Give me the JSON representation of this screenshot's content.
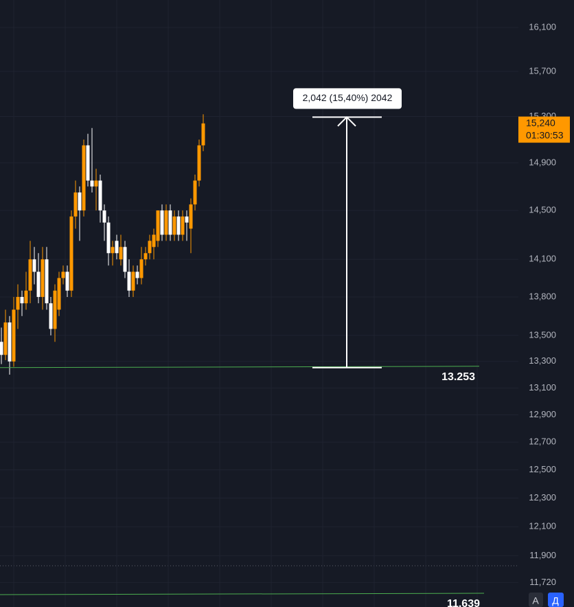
{
  "chart_data": {
    "type": "candlestick",
    "log": true,
    "ylim": [
      11557,
      16355
    ],
    "yticks": [
      {
        "value": 16100,
        "label": "16,100"
      },
      {
        "value": 15700,
        "label": "15,700"
      },
      {
        "value": 15300,
        "label": "15,300"
      },
      {
        "value": 14900,
        "label": "14,900"
      },
      {
        "value": 14500,
        "label": "14,500"
      },
      {
        "value": 14100,
        "label": "14,100"
      },
      {
        "value": 13800,
        "label": "13,800"
      },
      {
        "value": 13500,
        "label": "13,500"
      },
      {
        "value": 13300,
        "label": "13,300"
      },
      {
        "value": 13100,
        "label": "13,100"
      },
      {
        "value": 12900,
        "label": "12,900"
      },
      {
        "value": 12700,
        "label": "12,700"
      },
      {
        "value": 12500,
        "label": "12,500"
      },
      {
        "value": 12300,
        "label": "12,300"
      },
      {
        "value": 12100,
        "label": "12,100"
      },
      {
        "value": 11900,
        "label": "11,900"
      },
      {
        "value": 11720,
        "label": "11,720"
      }
    ],
    "grid": true,
    "up_color": "#ff9800",
    "down_color": "#ffffff",
    "series": {
      "open": [
        13450,
        13350,
        13600,
        13300,
        13700,
        13800,
        13750,
        13850,
        14100,
        14000,
        13800,
        14100,
        13750,
        13550,
        13700,
        13950,
        14000,
        13850,
        14450,
        14650,
        14500,
        15050,
        14750,
        14700,
        14750,
        14500,
        14400,
        14150,
        14250,
        14100,
        14200,
        14000,
        13850,
        14000,
        13950,
        14100,
        14150,
        14200,
        14250,
        14500,
        14300,
        14500,
        14300,
        14450,
        14300,
        14450,
        14350,
        14550,
        14750,
        15050
      ],
      "high": [
        13560,
        13700,
        13650,
        13800,
        13900,
        13850,
        14000,
        14250,
        14200,
        14150,
        14200,
        14200,
        13800,
        13900,
        14000,
        14050,
        14050,
        14500,
        14750,
        14700,
        15100,
        15150,
        15200,
        14850,
        14800,
        14550,
        14450,
        14250,
        14300,
        14300,
        14250,
        14100,
        14050,
        14050,
        14200,
        14200,
        14300,
        14350,
        14500,
        14550,
        14550,
        14550,
        14500,
        14500,
        14500,
        14500,
        14600,
        14800,
        15100,
        15320
      ],
      "low": [
        13280,
        13310,
        13200,
        13260,
        13550,
        13650,
        13700,
        13750,
        13900,
        13750,
        13700,
        13700,
        13500,
        13450,
        13650,
        13900,
        13800,
        13800,
        14350,
        14250,
        14450,
        14700,
        14650,
        14500,
        14400,
        14250,
        14050,
        14050,
        14100,
        14050,
        13950,
        13800,
        13800,
        13900,
        13900,
        14050,
        14100,
        14100,
        14200,
        14250,
        14250,
        14250,
        14250,
        14250,
        14250,
        14250,
        14150,
        14500,
        14700,
        15000
      ],
      "close": [
        13350,
        13600,
        13300,
        13700,
        13800,
        13750,
        13850,
        14100,
        14000,
        13800,
        14100,
        13750,
        13550,
        13850,
        13950,
        14000,
        13850,
        14450,
        14650,
        14500,
        15050,
        14750,
        14700,
        14750,
        14500,
        14400,
        14150,
        14200,
        14150,
        14200,
        14000,
        13850,
        14000,
        13950,
        14100,
        14150,
        14250,
        14300,
        14500,
        14300,
        14500,
        14300,
        14450,
        14300,
        14450,
        14400,
        14550,
        14750,
        15050,
        15240
      ]
    },
    "levels": [
      {
        "value": 13253,
        "label": "13.253"
      },
      {
        "value": 11639,
        "label": "11.639"
      }
    ],
    "last_price": {
      "value": 15240,
      "label": "15,240",
      "countdown": "01:30:53"
    },
    "measure": {
      "from": 13253,
      "change": 2042,
      "label": "2,042 (15,40%) 2042"
    },
    "buttons": [
      "A",
      "Д"
    ]
  }
}
